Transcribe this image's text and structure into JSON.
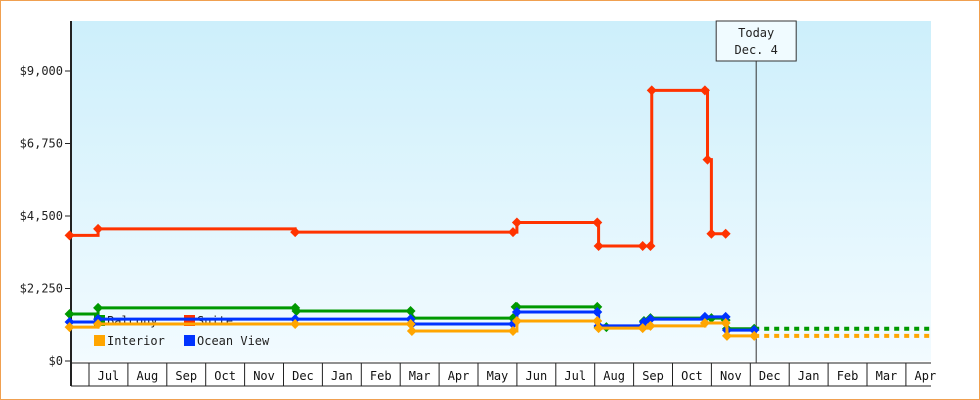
{
  "chart_data": {
    "type": "line",
    "step": true,
    "ylim": [
      0,
      10500
    ],
    "y_ticks": [
      "$0",
      "$2,250",
      "$4,500",
      "$6,750",
      "$9,000"
    ],
    "y_tick_values": [
      0,
      2250,
      4500,
      6750,
      9000
    ],
    "x_tick_labels": [
      "Jul",
      "Aug",
      "Sep",
      "Oct",
      "Nov",
      "Dec",
      "Jan",
      "Feb",
      "Mar",
      "Apr",
      "May",
      "Jun",
      "Jul",
      "Aug",
      "Sep",
      "Oct",
      "Nov",
      "Dec",
      "Jan",
      "Feb",
      "Mar",
      "Apr"
    ],
    "today": {
      "label": "Today",
      "date": "Dec. 4",
      "x": "Dec 4"
    },
    "legend_position": "bottom-left",
    "series": [
      {
        "name": "Suite",
        "color": "#ff3300",
        "points": [
          [
            "Jun 16",
            3900
          ],
          [
            "Jul 8",
            4100
          ],
          [
            "Dec 10",
            4000
          ],
          [
            "May 28",
            4000
          ],
          [
            "Jun 1",
            4300
          ],
          [
            "Aug 3",
            4300
          ],
          [
            "Aug 4",
            3570
          ],
          [
            "Sep 8",
            3570
          ],
          [
            "Sep 14",
            3570
          ],
          [
            "Sep 15",
            8400
          ],
          [
            "Oct 26",
            8400
          ],
          [
            "Oct 28",
            6250
          ],
          [
            "Oct 31",
            3950
          ],
          [
            "Nov 12",
            3950
          ]
        ],
        "forecast": null
      },
      {
        "name": "Balcony",
        "color": "#009900",
        "points": [
          [
            "Jun 16",
            1460
          ],
          [
            "Jul 8",
            1650
          ],
          [
            "Dec 10",
            1650
          ],
          [
            "Dec 11",
            1550
          ],
          [
            "Mar 9",
            1550
          ],
          [
            "Mar 10",
            1330
          ],
          [
            "May 28",
            1330
          ],
          [
            "May 30",
            1680
          ],
          [
            "Jun 1",
            1680
          ],
          [
            "Aug 3",
            1680
          ],
          [
            "Aug 4",
            1050
          ],
          [
            "Aug 10",
            1050
          ],
          [
            "Sep 8",
            1050
          ],
          [
            "Sep 9",
            1240
          ],
          [
            "Sep 14",
            1330
          ],
          [
            "Oct 26",
            1330
          ],
          [
            "Oct 31",
            1330
          ],
          [
            "Nov 12",
            1270
          ],
          [
            "Nov 13",
            1000
          ],
          [
            "Dec 4",
            1000
          ]
        ],
        "forecast": 1000
      },
      {
        "name": "Ocean View",
        "color": "#0033ff",
        "points": [
          [
            "Jun 16",
            1210
          ],
          [
            "Jul 8",
            1300
          ],
          [
            "Dec 10",
            1300
          ],
          [
            "Mar 9",
            1300
          ],
          [
            "Mar 10",
            1150
          ],
          [
            "May 28",
            1150
          ],
          [
            "Jun 1",
            1520
          ],
          [
            "Aug 3",
            1520
          ],
          [
            "Aug 4",
            1090
          ],
          [
            "Sep 8",
            1090
          ],
          [
            "Sep 9",
            1210
          ],
          [
            "Sep 14",
            1300
          ],
          [
            "Oct 26",
            1370
          ],
          [
            "Nov 12",
            1370
          ],
          [
            "Nov 13",
            960
          ],
          [
            "Dec 4",
            960
          ]
        ],
        "forecast": null
      },
      {
        "name": "Interior",
        "color": "#ffa500",
        "points": [
          [
            "Jun 16",
            1050
          ],
          [
            "Jul 8",
            1150
          ],
          [
            "Dec 10",
            1150
          ],
          [
            "Mar 9",
            1150
          ],
          [
            "Mar 10",
            930
          ],
          [
            "May 28",
            930
          ],
          [
            "Jun 1",
            1240
          ],
          [
            "Aug 3",
            1240
          ],
          [
            "Aug 4",
            1020
          ],
          [
            "Sep 8",
            1020
          ],
          [
            "Sep 14",
            1090
          ],
          [
            "Oct 26",
            1180
          ],
          [
            "Nov 12",
            1180
          ],
          [
            "Nov 13",
            780
          ],
          [
            "Dec 4",
            780
          ]
        ],
        "forecast": 780
      }
    ],
    "legend": [
      "Balcony",
      "Suite",
      "Interior",
      "Ocean View"
    ]
  }
}
